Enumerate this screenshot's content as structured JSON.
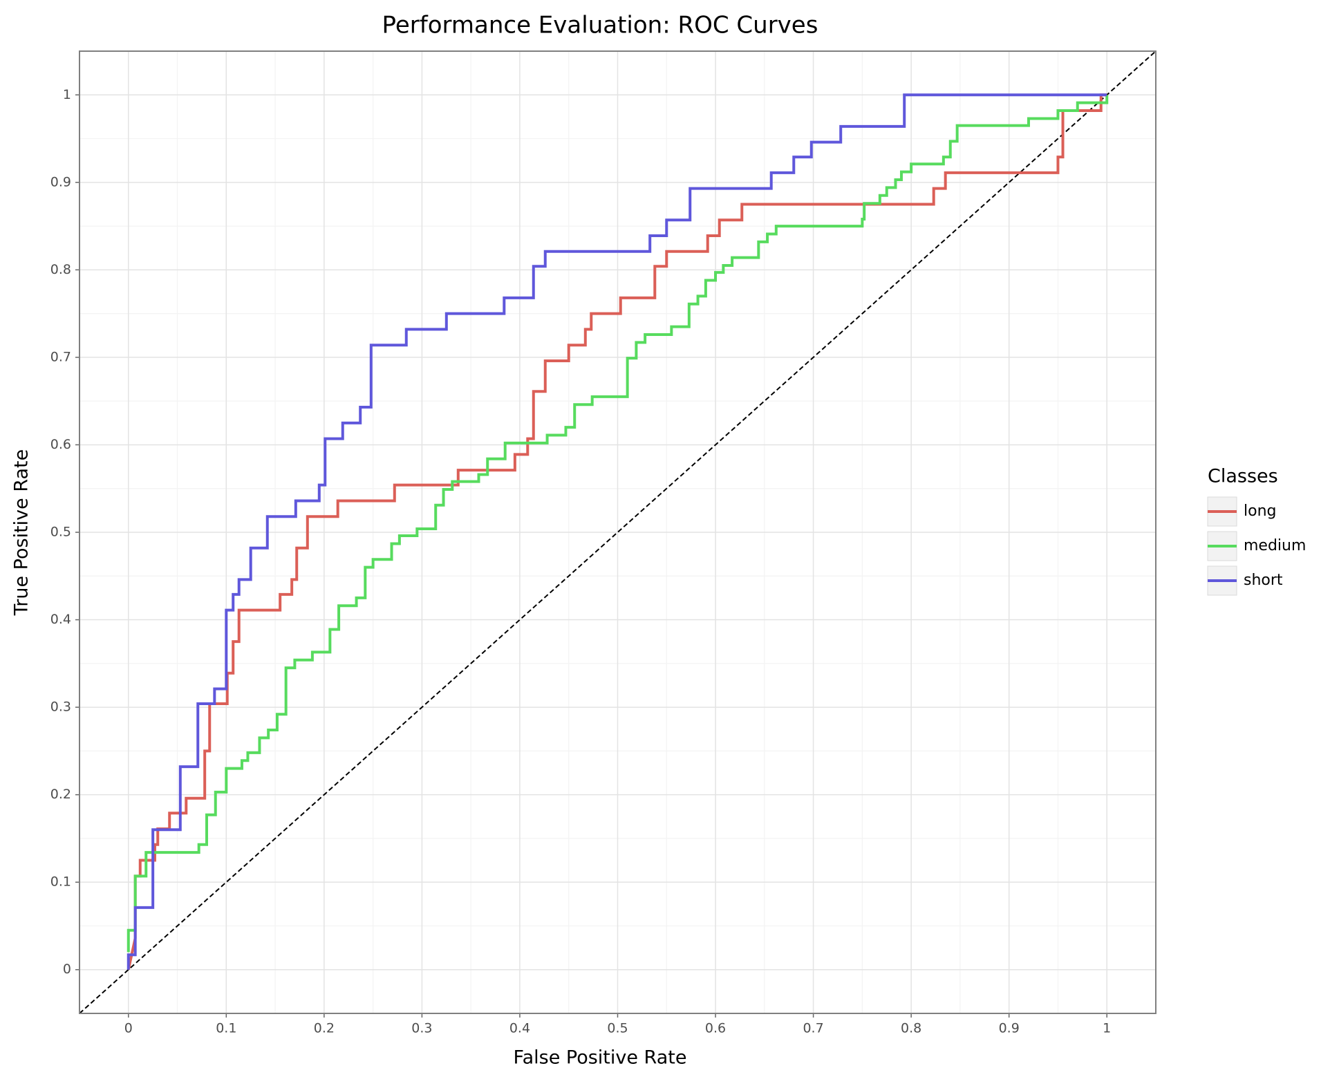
{
  "chart_data": {
    "type": "line",
    "title": "Performance Evaluation: ROC Curves",
    "x_label": "False Positive Rate",
    "y_label": "True Positive Rate",
    "legend_title": "Classes",
    "legend_position": "right",
    "grid": true,
    "xlim": [
      -0.05,
      1.05
    ],
    "ylim": [
      -0.05,
      1.05
    ],
    "xticks": [
      0,
      0.1,
      0.2,
      0.3,
      0.4,
      0.5,
      0.6,
      0.7,
      0.8,
      0.9,
      1
    ],
    "yticks": [
      0,
      0.1,
      0.2,
      0.3,
      0.4,
      0.5,
      0.6,
      0.7,
      0.8,
      0.9,
      1
    ],
    "series": [
      {
        "name": "long",
        "color": "#db5f57",
        "x": [
          0,
          0.007,
          0.007,
          0.012,
          0.012,
          0.027,
          0.027,
          0.03,
          0.03,
          0.042,
          0.042,
          0.059,
          0.059,
          0.078,
          0.078,
          0.083,
          0.083,
          0.101,
          0.101,
          0.107,
          0.107,
          0.113,
          0.113,
          0.155,
          0.155,
          0.167,
          0.167,
          0.172,
          0.172,
          0.183,
          0.183,
          0.214,
          0.214,
          0.272,
          0.272,
          0.337,
          0.337,
          0.395,
          0.395,
          0.408,
          0.408,
          0.414,
          0.414,
          0.426,
          0.426,
          0.45,
          0.45,
          0.467,
          0.467,
          0.473,
          0.473,
          0.503,
          0.503,
          0.538,
          0.538,
          0.55,
          0.55,
          0.592,
          0.592,
          0.604,
          0.604,
          0.627,
          0.627,
          0.823,
          0.823,
          0.835,
          0.835,
          0.95,
          0.95,
          0.955,
          0.955,
          0.994,
          0.994,
          1
        ],
        "y": [
          0,
          0.036,
          0.107,
          0.107,
          0.125,
          0.125,
          0.143,
          0.143,
          0.161,
          0.161,
          0.179,
          0.179,
          0.196,
          0.196,
          0.25,
          0.25,
          0.304,
          0.304,
          0.339,
          0.339,
          0.375,
          0.375,
          0.411,
          0.411,
          0.429,
          0.429,
          0.446,
          0.446,
          0.482,
          0.482,
          0.518,
          0.518,
          0.536,
          0.536,
          0.554,
          0.554,
          0.571,
          0.571,
          0.589,
          0.589,
          0.607,
          0.607,
          0.661,
          0.661,
          0.696,
          0.696,
          0.714,
          0.714,
          0.732,
          0.732,
          0.75,
          0.75,
          0.768,
          0.768,
          0.804,
          0.804,
          0.821,
          0.821,
          0.839,
          0.839,
          0.857,
          0.857,
          0.875,
          0.875,
          0.893,
          0.893,
          0.911,
          0.911,
          0.929,
          0.929,
          0.982,
          0.982,
          1,
          1
        ]
      },
      {
        "name": "medium",
        "color": "#57db5e",
        "x": [
          0,
          0,
          0.007,
          0.007,
          0.018,
          0.018,
          0.072,
          0.072,
          0.08,
          0.08,
          0.089,
          0.089,
          0.1,
          0.1,
          0.116,
          0.116,
          0.122,
          0.122,
          0.134,
          0.134,
          0.143,
          0.143,
          0.152,
          0.152,
          0.161,
          0.161,
          0.17,
          0.17,
          0.188,
          0.188,
          0.206,
          0.206,
          0.215,
          0.215,
          0.233,
          0.233,
          0.242,
          0.242,
          0.25,
          0.25,
          0.269,
          0.269,
          0.277,
          0.277,
          0.295,
          0.295,
          0.314,
          0.314,
          0.322,
          0.322,
          0.331,
          0.331,
          0.358,
          0.358,
          0.367,
          0.367,
          0.385,
          0.385,
          0.428,
          0.428,
          0.447,
          0.447,
          0.456,
          0.456,
          0.474,
          0.474,
          0.51,
          0.51,
          0.519,
          0.519,
          0.528,
          0.528,
          0.555,
          0.555,
          0.573,
          0.573,
          0.582,
          0.582,
          0.59,
          0.59,
          0.6,
          0.6,
          0.608,
          0.608,
          0.617,
          0.617,
          0.644,
          0.644,
          0.653,
          0.653,
          0.662,
          0.662,
          0.75,
          0.75,
          0.752,
          0.752,
          0.768,
          0.768,
          0.775,
          0.775,
          0.784,
          0.784,
          0.79,
          0.79,
          0.8,
          0.8,
          0.833,
          0.833,
          0.84,
          0.84,
          0.847,
          0.847,
          0.92,
          0.92,
          0.95,
          0.95,
          0.97,
          0.97,
          1,
          1
        ],
        "y": [
          0.02,
          0.045,
          0.045,
          0.107,
          0.107,
          0.134,
          0.134,
          0.143,
          0.143,
          0.177,
          0.177,
          0.203,
          0.203,
          0.23,
          0.23,
          0.239,
          0.239,
          0.248,
          0.248,
          0.265,
          0.265,
          0.274,
          0.274,
          0.292,
          0.292,
          0.345,
          0.345,
          0.354,
          0.354,
          0.363,
          0.363,
          0.389,
          0.389,
          0.416,
          0.416,
          0.425,
          0.425,
          0.46,
          0.46,
          0.469,
          0.469,
          0.487,
          0.487,
          0.496,
          0.496,
          0.504,
          0.504,
          0.531,
          0.531,
          0.549,
          0.549,
          0.558,
          0.558,
          0.566,
          0.566,
          0.584,
          0.584,
          0.602,
          0.602,
          0.611,
          0.611,
          0.62,
          0.62,
          0.646,
          0.646,
          0.655,
          0.655,
          0.699,
          0.699,
          0.717,
          0.717,
          0.726,
          0.726,
          0.735,
          0.735,
          0.761,
          0.761,
          0.77,
          0.77,
          0.788,
          0.788,
          0.797,
          0.797,
          0.805,
          0.805,
          0.814,
          0.814,
          0.832,
          0.832,
          0.841,
          0.841,
          0.85,
          0.85,
          0.858,
          0.858,
          0.876,
          0.876,
          0.885,
          0.885,
          0.894,
          0.894,
          0.903,
          0.903,
          0.912,
          0.912,
          0.921,
          0.921,
          0.929,
          0.929,
          0.947,
          0.947,
          0.965,
          0.965,
          0.973,
          0.973,
          0.982,
          0.982,
          0.991,
          0.991,
          1
        ]
      },
      {
        "name": "short",
        "color": "#5f57db",
        "x": [
          0,
          0,
          0.007,
          0.007,
          0.025,
          0.025,
          0.053,
          0.053,
          0.071,
          0.071,
          0.088,
          0.088,
          0.1,
          0.1,
          0.107,
          0.107,
          0.113,
          0.113,
          0.125,
          0.125,
          0.142,
          0.142,
          0.171,
          0.171,
          0.195,
          0.195,
          0.201,
          0.201,
          0.219,
          0.219,
          0.237,
          0.237,
          0.248,
          0.248,
          0.284,
          0.284,
          0.325,
          0.325,
          0.384,
          0.384,
          0.414,
          0.414,
          0.426,
          0.426,
          0.533,
          0.533,
          0.55,
          0.55,
          0.574,
          0.574,
          0.657,
          0.657,
          0.68,
          0.68,
          0.698,
          0.698,
          0.728,
          0.728,
          0.793,
          0.793,
          1
        ],
        "y": [
          0,
          0.017,
          0.017,
          0.071,
          0.071,
          0.16,
          0.16,
          0.232,
          0.232,
          0.304,
          0.304,
          0.321,
          0.321,
          0.411,
          0.411,
          0.429,
          0.429,
          0.446,
          0.446,
          0.482,
          0.482,
          0.518,
          0.518,
          0.536,
          0.536,
          0.554,
          0.554,
          0.607,
          0.607,
          0.625,
          0.625,
          0.643,
          0.643,
          0.714,
          0.714,
          0.732,
          0.732,
          0.75,
          0.75,
          0.768,
          0.768,
          0.804,
          0.804,
          0.821,
          0.821,
          0.839,
          0.839,
          0.857,
          0.857,
          0.893,
          0.893,
          0.911,
          0.911,
          0.929,
          0.929,
          0.946,
          0.946,
          0.964,
          0.964,
          1,
          1
        ]
      }
    ]
  }
}
